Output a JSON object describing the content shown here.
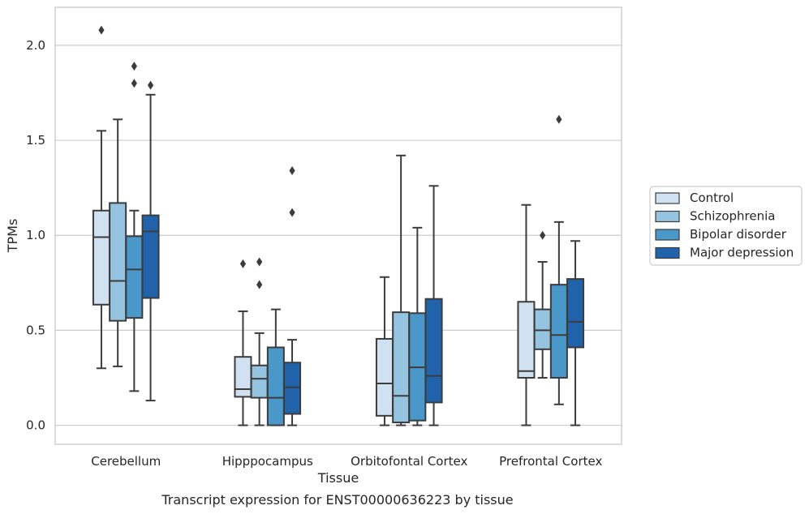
{
  "caption": "Transcript expression for ENST00000636223 by tissue",
  "chart_data": {
    "type": "box",
    "title": "",
    "xlabel": "Tissue",
    "ylabel": "TPMs",
    "ylim": [
      -0.1,
      2.2
    ],
    "yticks": [
      "0.0",
      "0.5",
      "1.0",
      "1.5",
      "2.0"
    ],
    "grid": "horizontal",
    "legend_position": "right",
    "categories": [
      "Cerebellum",
      "Hipppocampus",
      "Orbitofontal Cortex",
      "Prefrontal Cortex"
    ],
    "series": [
      {
        "name": "Control",
        "color": "#d0e1f2",
        "boxes": [
          {
            "whislo": 0.3,
            "q1": 0.635,
            "med": 0.99,
            "q3": 1.13,
            "whishi": 1.55,
            "fliers": [
              2.08
            ]
          },
          {
            "whislo": 0.0,
            "q1": 0.15,
            "med": 0.19,
            "q3": 0.36,
            "whishi": 0.6,
            "fliers": [
              0.85
            ]
          },
          {
            "whislo": 0.0,
            "q1": 0.05,
            "med": 0.22,
            "q3": 0.455,
            "whishi": 0.78,
            "fliers": []
          },
          {
            "whislo": 0.0,
            "q1": 0.25,
            "med": 0.285,
            "q3": 0.65,
            "whishi": 1.16,
            "fliers": []
          }
        ]
      },
      {
        "name": "Schizophrenia",
        "color": "#94c4df",
        "boxes": [
          {
            "whislo": 0.31,
            "q1": 0.55,
            "med": 0.76,
            "q3": 1.17,
            "whishi": 1.61,
            "fliers": []
          },
          {
            "whislo": 0.0,
            "q1": 0.145,
            "med": 0.245,
            "q3": 0.315,
            "whishi": 0.485,
            "fliers": [
              0.74,
              0.86
            ]
          },
          {
            "whislo": 0.0,
            "q1": 0.015,
            "med": 0.155,
            "q3": 0.595,
            "whishi": 1.42,
            "fliers": []
          },
          {
            "whislo": 0.25,
            "q1": 0.4,
            "med": 0.5,
            "q3": 0.61,
            "whishi": 0.86,
            "fliers": [
              1.0
            ]
          }
        ]
      },
      {
        "name": "Bipolar disorder",
        "color": "#4a98c9",
        "boxes": [
          {
            "whislo": 0.18,
            "q1": 0.565,
            "med": 0.82,
            "q3": 0.995,
            "whishi": 1.13,
            "fliers": [
              1.8,
              1.89
            ]
          },
          {
            "whislo": 0.0,
            "q1": 0.0,
            "med": 0.145,
            "q3": 0.41,
            "whishi": 0.61,
            "fliers": []
          },
          {
            "whislo": 0.0,
            "q1": 0.025,
            "med": 0.305,
            "q3": 0.59,
            "whishi": 1.04,
            "fliers": []
          },
          {
            "whislo": 0.11,
            "q1": 0.25,
            "med": 0.475,
            "q3": 0.74,
            "whishi": 1.07,
            "fliers": [
              1.61
            ]
          }
        ]
      },
      {
        "name": "Major depression",
        "color": "#2163aa",
        "boxes": [
          {
            "whislo": 0.13,
            "q1": 0.67,
            "med": 1.02,
            "q3": 1.105,
            "whishi": 1.74,
            "fliers": [
              1.79
            ]
          },
          {
            "whislo": 0.0,
            "q1": 0.06,
            "med": 0.2,
            "q3": 0.33,
            "whishi": 0.45,
            "fliers": [
              1.12,
              1.34
            ]
          },
          {
            "whislo": 0.0,
            "q1": 0.12,
            "med": 0.26,
            "q3": 0.665,
            "whishi": 1.26,
            "fliers": []
          },
          {
            "whislo": 0.0,
            "q1": 0.41,
            "med": 0.545,
            "q3": 0.77,
            "whishi": 0.97,
            "fliers": []
          }
        ]
      }
    ]
  }
}
